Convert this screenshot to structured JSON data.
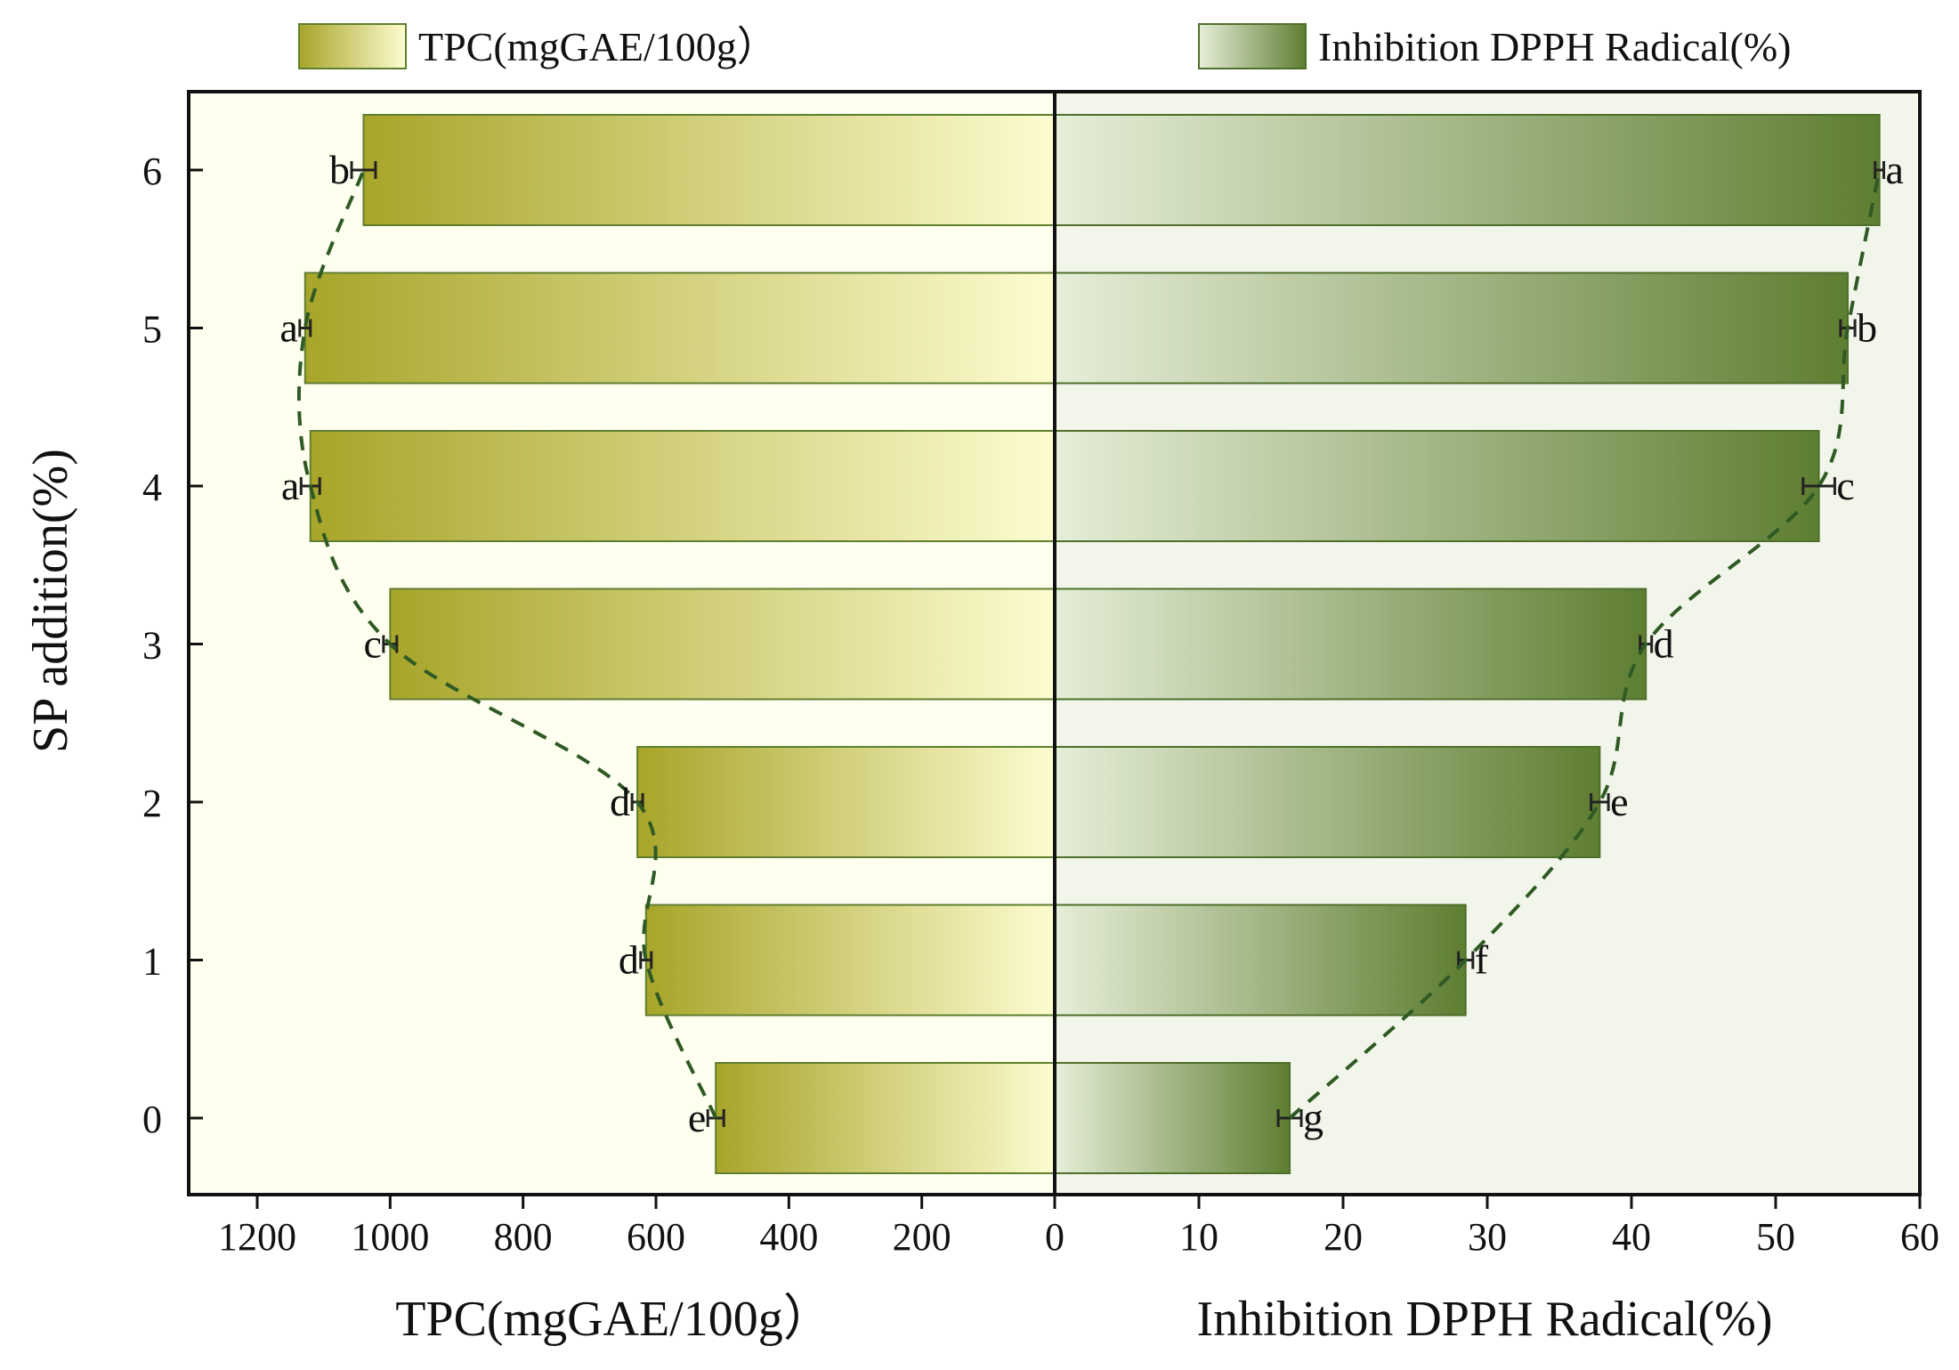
{
  "chart_data": {
    "type": "bar",
    "orientation": "horizontal-butterfly",
    "categories": [
      "0",
      "1",
      "2",
      "3",
      "4",
      "5",
      "6"
    ],
    "ylabel": "SP addition(%)",
    "left_panel": {
      "series_name": "TPC(mgGAE/100g）",
      "xlabel": "TPC(mgGAE/100g）",
      "xlim": [
        0,
        1300
      ],
      "xticks": [
        1200,
        1000,
        800,
        600,
        400,
        200,
        0
      ],
      "values": [
        510,
        615,
        628,
        1000,
        1120,
        1128,
        1040
      ],
      "errors": [
        12,
        8,
        8,
        10,
        14,
        8,
        18
      ],
      "significance": [
        "e",
        "d",
        "d",
        "c",
        "a",
        "a",
        "b"
      ],
      "colors": {
        "outer": "#a8a52a",
        "inner": "#fdfcd0",
        "border": "#5f7f2f",
        "background": "#fffff0"
      }
    },
    "right_panel": {
      "series_name": "Inhibition DPPH Radical(%)",
      "xlabel": "Inhibition DPPH Radical(%)",
      "xlim": [
        0,
        60
      ],
      "xticks": [
        0,
        10,
        20,
        30,
        40,
        50,
        60
      ],
      "values": [
        16.3,
        28.5,
        37.8,
        41.0,
        53.0,
        55.0,
        57.2
      ],
      "errors": [
        0.8,
        0.5,
        0.6,
        0.4,
        1.1,
        0.5,
        0.3
      ],
      "significance": [
        "g",
        "f",
        "e",
        "d",
        "c",
        "b",
        "a"
      ],
      "colors": {
        "outer": "#5e7e32",
        "inner": "#e6eed8",
        "border": "#4f6f2a",
        "background": "#f2f6ea"
      }
    },
    "trend_line": {
      "style": "dashed",
      "color": "#2f5a24"
    },
    "legend_position": "top",
    "grid": false
  }
}
